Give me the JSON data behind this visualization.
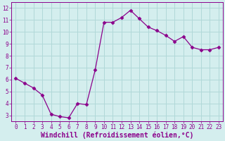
{
  "x": [
    0,
    1,
    2,
    3,
    4,
    5,
    6,
    7,
    8,
    9,
    10,
    11,
    12,
    13,
    14,
    15,
    16,
    17,
    18,
    19,
    20,
    21,
    22,
    23
  ],
  "y": [
    6.1,
    5.7,
    5.3,
    4.7,
    3.1,
    2.9,
    2.8,
    4.0,
    3.9,
    6.8,
    10.8,
    10.8,
    11.2,
    11.8,
    11.1,
    10.4,
    10.1,
    9.7,
    9.2,
    9.6,
    8.7,
    8.5,
    8.5,
    8.7
  ],
  "line_color": "#8B008B",
  "marker": "D",
  "marker_size": 2.5,
  "bg_color": "#d4eeee",
  "grid_color": "#b0d8d8",
  "xlabel": "Windchill (Refroidissement éolien,°C)",
  "tick_color": "#8B008B",
  "ylim": [
    2.5,
    12.5
  ],
  "xlim": [
    -0.5,
    23.5
  ],
  "yticks": [
    3,
    4,
    5,
    6,
    7,
    8,
    9,
    10,
    11,
    12
  ],
  "xticks": [
    0,
    1,
    2,
    3,
    4,
    5,
    6,
    7,
    8,
    9,
    10,
    11,
    12,
    13,
    14,
    15,
    16,
    17,
    18,
    19,
    20,
    21,
    22,
    23
  ],
  "tick_fontsize": 5.5,
  "xlabel_fontsize": 7.0
}
